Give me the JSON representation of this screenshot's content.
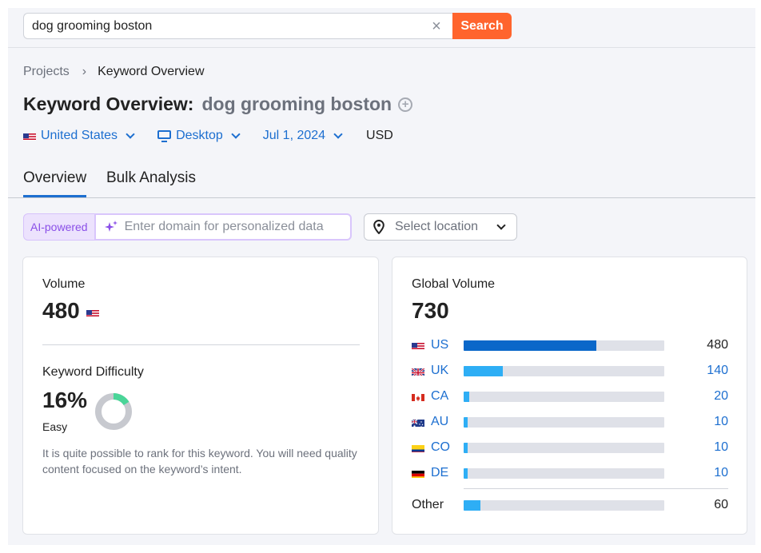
{
  "search": {
    "query": "dog grooming boston",
    "clear_glyph": "×",
    "button_label": "Search"
  },
  "breadcrumb": {
    "projects": "Projects",
    "separator": "›",
    "current": "Keyword Overview"
  },
  "header": {
    "title": "Keyword Overview:",
    "keyword": "dog grooming boston",
    "add_glyph": "+"
  },
  "filters": {
    "country": "United States",
    "device": "Desktop",
    "date": "Jul 1, 2024",
    "currency": "USD"
  },
  "tabs": {
    "overview": "Overview",
    "bulk": "Bulk Analysis"
  },
  "ai": {
    "badge": "AI-powered",
    "placeholder": "Enter domain for personalized data",
    "location_placeholder": "Select location"
  },
  "volume": {
    "label": "Volume",
    "value": "480"
  },
  "difficulty": {
    "label": "Keyword Difficulty",
    "percent": "16%",
    "percent_value": 16,
    "level": "Easy",
    "description": "It is quite possible to rank for this keyword. You will need quality content focused on the keyword’s intent."
  },
  "global_volume": {
    "label": "Global Volume",
    "value": "730",
    "rows": [
      {
        "code": "US",
        "value": "480",
        "share": 0.66,
        "color": "#0a67c9"
      },
      {
        "code": "UK",
        "value": "140",
        "share": 0.195,
        "color": "#2eaef5"
      },
      {
        "code": "CA",
        "value": "20",
        "share": 0.028,
        "color": "#2eaef5"
      },
      {
        "code": "AU",
        "value": "10",
        "share": 0.014,
        "color": "#2eaef5"
      },
      {
        "code": "CO",
        "value": "10",
        "share": 0.014,
        "color": "#2eaef5"
      },
      {
        "code": "DE",
        "value": "10",
        "share": 0.014,
        "color": "#2eaef5"
      }
    ],
    "other": {
      "label": "Other",
      "value": "60",
      "share": 0.083,
      "color": "#2eaef5"
    }
  },
  "colors": {
    "accent": "#ff642d",
    "link": "#1d6fd0",
    "kd_easy": "#4ad598"
  }
}
